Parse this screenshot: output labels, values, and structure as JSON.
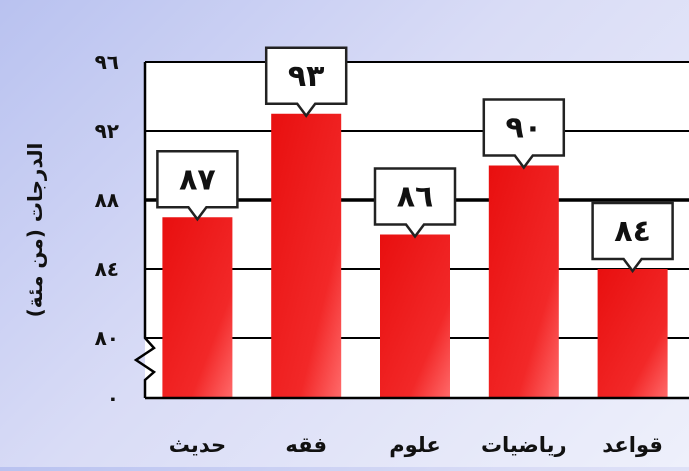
{
  "chart_data": {
    "type": "bar",
    "ylabel": "الدرجات (من مئة)",
    "categories": [
      "حديث",
      "فقه",
      "علوم",
      "رياضيات",
      "قواعد"
    ],
    "values": [
      87,
      93,
      86,
      90,
      84
    ],
    "data_labels": [
      "٨٧",
      "٩٣",
      "٨٦",
      "٩٠",
      "٨٤"
    ],
    "y_ticks": [
      {
        "value": 0,
        "label": "٠"
      },
      {
        "value": 80,
        "label": "٨٠"
      },
      {
        "value": 84,
        "label": "٨٤"
      },
      {
        "value": 88,
        "label": "٨٨"
      },
      {
        "value": 92,
        "label": "٩٢"
      },
      {
        "value": 96,
        "label": "٩٦"
      }
    ],
    "ylim": [
      80,
      96
    ],
    "axis_break": true,
    "grid": true,
    "legend": "none",
    "colors": {
      "bar": "#ee1b1b",
      "bar_highlight": "#ff5a5a",
      "grid": "#000000",
      "plot_bg": "#ffffff"
    }
  }
}
